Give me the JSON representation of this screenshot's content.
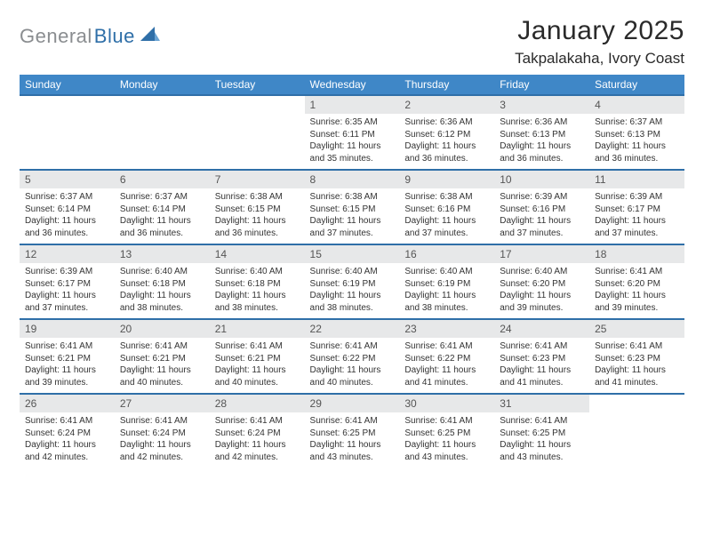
{
  "brand": {
    "textGray": "General",
    "textBlue": "Blue"
  },
  "header": {
    "title": "January 2025",
    "location": "Takpalakaha, Ivory Coast"
  },
  "colors": {
    "headerBg": "#3f87c7",
    "rowDivider": "#2f6fa8",
    "dayStrip": "#e7e8e9",
    "textDark": "#333333",
    "logoGray": "#8a8d90",
    "logoBlue": "#2f6fa8"
  },
  "weekdays": [
    "Sunday",
    "Monday",
    "Tuesday",
    "Wednesday",
    "Thursday",
    "Friday",
    "Saturday"
  ],
  "firstWeekday": 3,
  "daysInMonth": 31,
  "days": {
    "1": {
      "sunrise": "6:35 AM",
      "sunset": "6:11 PM",
      "daylight": "11 hours and 35 minutes."
    },
    "2": {
      "sunrise": "6:36 AM",
      "sunset": "6:12 PM",
      "daylight": "11 hours and 36 minutes."
    },
    "3": {
      "sunrise": "6:36 AM",
      "sunset": "6:13 PM",
      "daylight": "11 hours and 36 minutes."
    },
    "4": {
      "sunrise": "6:37 AM",
      "sunset": "6:13 PM",
      "daylight": "11 hours and 36 minutes."
    },
    "5": {
      "sunrise": "6:37 AM",
      "sunset": "6:14 PM",
      "daylight": "11 hours and 36 minutes."
    },
    "6": {
      "sunrise": "6:37 AM",
      "sunset": "6:14 PM",
      "daylight": "11 hours and 36 minutes."
    },
    "7": {
      "sunrise": "6:38 AM",
      "sunset": "6:15 PM",
      "daylight": "11 hours and 36 minutes."
    },
    "8": {
      "sunrise": "6:38 AM",
      "sunset": "6:15 PM",
      "daylight": "11 hours and 37 minutes."
    },
    "9": {
      "sunrise": "6:38 AM",
      "sunset": "6:16 PM",
      "daylight": "11 hours and 37 minutes."
    },
    "10": {
      "sunrise": "6:39 AM",
      "sunset": "6:16 PM",
      "daylight": "11 hours and 37 minutes."
    },
    "11": {
      "sunrise": "6:39 AM",
      "sunset": "6:17 PM",
      "daylight": "11 hours and 37 minutes."
    },
    "12": {
      "sunrise": "6:39 AM",
      "sunset": "6:17 PM",
      "daylight": "11 hours and 37 minutes."
    },
    "13": {
      "sunrise": "6:40 AM",
      "sunset": "6:18 PM",
      "daylight": "11 hours and 38 minutes."
    },
    "14": {
      "sunrise": "6:40 AM",
      "sunset": "6:18 PM",
      "daylight": "11 hours and 38 minutes."
    },
    "15": {
      "sunrise": "6:40 AM",
      "sunset": "6:19 PM",
      "daylight": "11 hours and 38 minutes."
    },
    "16": {
      "sunrise": "6:40 AM",
      "sunset": "6:19 PM",
      "daylight": "11 hours and 38 minutes."
    },
    "17": {
      "sunrise": "6:40 AM",
      "sunset": "6:20 PM",
      "daylight": "11 hours and 39 minutes."
    },
    "18": {
      "sunrise": "6:41 AM",
      "sunset": "6:20 PM",
      "daylight": "11 hours and 39 minutes."
    },
    "19": {
      "sunrise": "6:41 AM",
      "sunset": "6:21 PM",
      "daylight": "11 hours and 39 minutes."
    },
    "20": {
      "sunrise": "6:41 AM",
      "sunset": "6:21 PM",
      "daylight": "11 hours and 40 minutes."
    },
    "21": {
      "sunrise": "6:41 AM",
      "sunset": "6:21 PM",
      "daylight": "11 hours and 40 minutes."
    },
    "22": {
      "sunrise": "6:41 AM",
      "sunset": "6:22 PM",
      "daylight": "11 hours and 40 minutes."
    },
    "23": {
      "sunrise": "6:41 AM",
      "sunset": "6:22 PM",
      "daylight": "11 hours and 41 minutes."
    },
    "24": {
      "sunrise": "6:41 AM",
      "sunset": "6:23 PM",
      "daylight": "11 hours and 41 minutes."
    },
    "25": {
      "sunrise": "6:41 AM",
      "sunset": "6:23 PM",
      "daylight": "11 hours and 41 minutes."
    },
    "26": {
      "sunrise": "6:41 AM",
      "sunset": "6:24 PM",
      "daylight": "11 hours and 42 minutes."
    },
    "27": {
      "sunrise": "6:41 AM",
      "sunset": "6:24 PM",
      "daylight": "11 hours and 42 minutes."
    },
    "28": {
      "sunrise": "6:41 AM",
      "sunset": "6:24 PM",
      "daylight": "11 hours and 42 minutes."
    },
    "29": {
      "sunrise": "6:41 AM",
      "sunset": "6:25 PM",
      "daylight": "11 hours and 43 minutes."
    },
    "30": {
      "sunrise": "6:41 AM",
      "sunset": "6:25 PM",
      "daylight": "11 hours and 43 minutes."
    },
    "31": {
      "sunrise": "6:41 AM",
      "sunset": "6:25 PM",
      "daylight": "11 hours and 43 minutes."
    }
  },
  "labels": {
    "sunrise": "Sunrise:",
    "sunset": "Sunset:",
    "daylight": "Daylight:"
  }
}
